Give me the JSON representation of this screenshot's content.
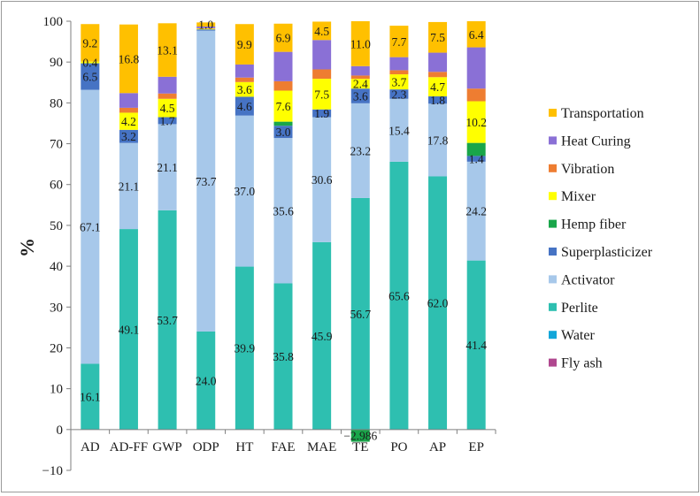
{
  "chart_data": {
    "type": "bar",
    "stacked": true,
    "title": "",
    "xlabel": "",
    "ylabel": "%",
    "ylim": [
      -10,
      100
    ],
    "yticks": [
      -10,
      0,
      10,
      20,
      30,
      40,
      50,
      60,
      70,
      80,
      90,
      100
    ],
    "grid": false,
    "legend_position": "right",
    "categories": [
      "AD",
      "AD-FF",
      "GWP",
      "ODP",
      "HT",
      "FAE",
      "MAE",
      "TE",
      "PO",
      "AP",
      "EP"
    ],
    "series": [
      {
        "name": "Fly ash",
        "color": "#b0478f",
        "values": [
          0,
          0,
          0,
          0,
          0,
          0,
          0,
          0,
          0,
          0,
          0
        ],
        "labels": [
          "",
          "",
          "",
          "",
          "",
          "",
          "",
          "",
          "",
          "",
          ""
        ]
      },
      {
        "name": "Water",
        "color": "#12a6d9",
        "values": [
          0,
          0,
          0,
          0,
          0,
          0,
          0,
          0,
          0,
          0,
          0
        ],
        "labels": [
          "",
          "",
          "",
          "",
          "",
          "",
          "",
          "",
          "",
          "",
          ""
        ]
      },
      {
        "name": "Perlite",
        "color": "#2ebfb0",
        "values": [
          16.1,
          49.1,
          53.7,
          24.0,
          39.9,
          35.8,
          45.9,
          56.7,
          65.6,
          62.0,
          41.4
        ],
        "labels": [
          "16.1",
          "49.1",
          "53.7",
          "24.0",
          "39.9",
          "35.8",
          "45.9",
          "56.7",
          "65.6",
          "62.0",
          "41.4"
        ]
      },
      {
        "name": "Activator",
        "color": "#a7c8ea",
        "values": [
          67.1,
          21.1,
          21.1,
          73.7,
          37.0,
          35.6,
          30.6,
          23.2,
          15.4,
          17.8,
          24.2
        ],
        "labels": [
          "67.1",
          "21.1",
          "21.1",
          "73.7",
          "37.0",
          "35.6",
          "30.6",
          "23.2",
          "15.4",
          "17.8",
          "24.2"
        ]
      },
      {
        "name": "Superplasticizer",
        "color": "#4673c4",
        "values": [
          6.5,
          3.2,
          1.7,
          0.3,
          4.6,
          3.0,
          1.9,
          3.6,
          2.3,
          1.8,
          1.4
        ],
        "labels": [
          "6.5",
          "3.2",
          "1.7",
          "",
          "4.6",
          "3.0",
          "1.9",
          "3.6",
          "2.3",
          "1.8",
          "1.4"
        ]
      },
      {
        "name": "Hemp fiber",
        "color": "#19a64a",
        "values": [
          0,
          0,
          0,
          0,
          0,
          1.0,
          0,
          -2.986,
          0,
          0,
          3.2
        ],
        "labels": [
          "",
          "",
          "",
          "",
          "",
          "",
          "",
          "−2.986",
          "",
          "",
          ""
        ]
      },
      {
        "name": "Mixer",
        "color": "#ffff00",
        "values": [
          0.4,
          4.2,
          4.5,
          0.2,
          3.6,
          7.6,
          7.5,
          2.4,
          3.7,
          4.7,
          10.2
        ],
        "labels": [
          "0.4",
          "4.2",
          "4.5",
          "",
          "3.6",
          "7.6",
          "7.5",
          "2.4",
          "3.7",
          "4.7",
          "10.2"
        ]
      },
      {
        "name": "Vibration",
        "color": "#ee7d31",
        "values": [
          0,
          1.2,
          1.3,
          0.1,
          1.1,
          2.3,
          2.3,
          0.8,
          1.0,
          1.3,
          3.1
        ],
        "labels": [
          "",
          "",
          "",
          "",
          "",
          "",
          "",
          "",
          "",
          "",
          ""
        ]
      },
      {
        "name": "Heat Curing",
        "color": "#8a70d6",
        "values": [
          0,
          3.6,
          4.1,
          0.4,
          3.2,
          7.2,
          7.2,
          2.3,
          3.2,
          4.7,
          10.1
        ],
        "labels": [
          "",
          "",
          "",
          "",
          "",
          "",
          "",
          "",
          "",
          "",
          ""
        ]
      },
      {
        "name": "Transportation",
        "color": "#ffc000",
        "values": [
          9.2,
          16.8,
          13.1,
          1.0,
          9.9,
          6.9,
          4.5,
          11.0,
          7.7,
          7.5,
          6.4
        ],
        "labels": [
          "9.2",
          "16.8",
          "13.1",
          "1.0",
          "9.9",
          "6.9",
          "4.5",
          "11.0",
          "7.7",
          "7.5",
          "6.4"
        ]
      }
    ],
    "legend_order": [
      "Transportation",
      "Heat Curing",
      "Vibration",
      "Mixer",
      "Hemp fiber",
      "Superplasticizer",
      "Activator",
      "Perlite",
      "Water",
      "Fly ash"
    ]
  }
}
